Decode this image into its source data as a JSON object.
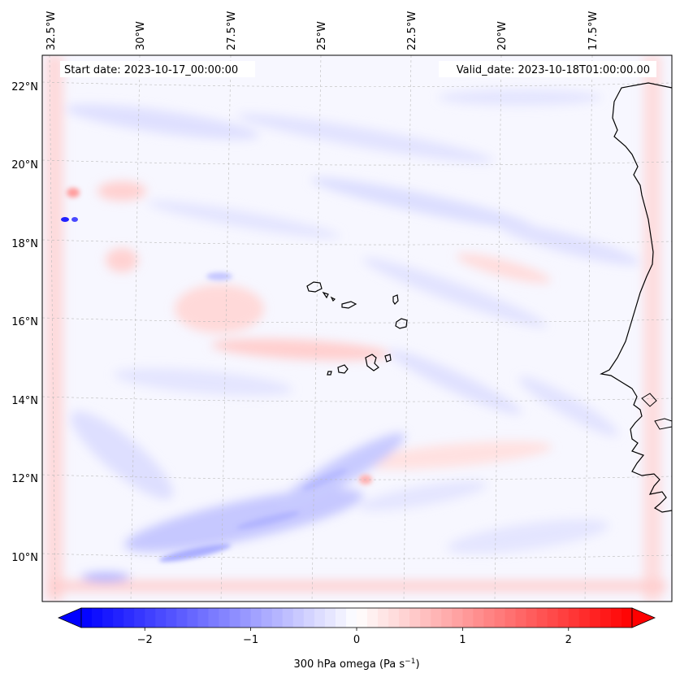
{
  "map": {
    "start_date": "Start date: 2023-10-17_00:00:00",
    "valid_date": "Valid_date: 2023-10-18T01:00:00.00",
    "lon_labels": [
      "32.5°W",
      "30°W",
      "27.5°W",
      "25°W",
      "22.5°W",
      "20°W",
      "17.5°W"
    ],
    "lat_labels": [
      "22°N",
      "20°N",
      "18°N",
      "16°N",
      "14°N",
      "12°N",
      "10°N"
    ]
  },
  "colorbar": {
    "tick_labels": [
      "−2",
      "−1",
      "0",
      "1",
      "2"
    ],
    "label_prefix": "300 hPa omega (Pa s",
    "label_exp": "−1",
    "label_suffix": ")",
    "vmin": -2.6,
    "vmax": 2.6,
    "colormap": "bwr",
    "low_color": "#0000ff",
    "mid_color": "#ffffff",
    "high_color": "#ff0000"
  },
  "colors": {
    "coastline": "#000000",
    "gridline": "#bbbbbb",
    "field_background": "#f7f7ff"
  }
}
